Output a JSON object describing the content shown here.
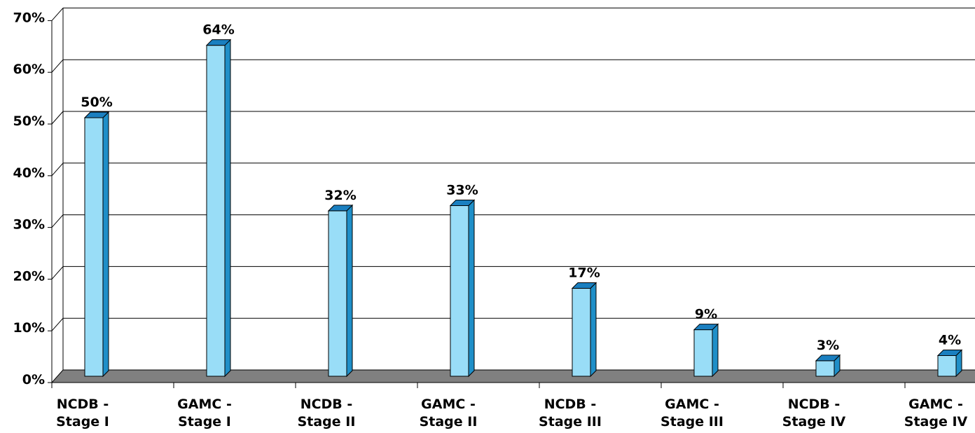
{
  "chart_data": {
    "type": "bar",
    "title": "",
    "xlabel": "",
    "ylabel": "",
    "categories": [
      [
        "NCDB -",
        "Stage I"
      ],
      [
        "GAMC -",
        "Stage I"
      ],
      [
        "NCDB -",
        "Stage II"
      ],
      [
        "GAMC -",
        "Stage II"
      ],
      [
        "NCDB -",
        "Stage III"
      ],
      [
        "GAMC -",
        "Stage III"
      ],
      [
        "NCDB -",
        "Stage IV"
      ],
      [
        "GAMC -",
        "Stage IV"
      ]
    ],
    "values": [
      50,
      64,
      32,
      33,
      17,
      9,
      3,
      4
    ],
    "data_labels": [
      "50%",
      "64%",
      "32%",
      "33%",
      "17%",
      "9%",
      "3%",
      "4%"
    ],
    "ylim": [
      0,
      70
    ],
    "yticks": [
      0,
      10,
      20,
      30,
      40,
      50,
      60,
      70
    ],
    "ytick_labels": [
      "0%",
      "10%",
      "20%",
      "30%",
      "40%",
      "50%",
      "60%",
      "70%"
    ],
    "grid": true,
    "legend": "none",
    "style": "3d",
    "colors": {
      "bar_front": "#99ddf7",
      "bar_side": "#1f8fc8",
      "bar_top": "#1a7fc0",
      "floor": "#808080",
      "grid": "#000000",
      "text": "#000000"
    }
  }
}
